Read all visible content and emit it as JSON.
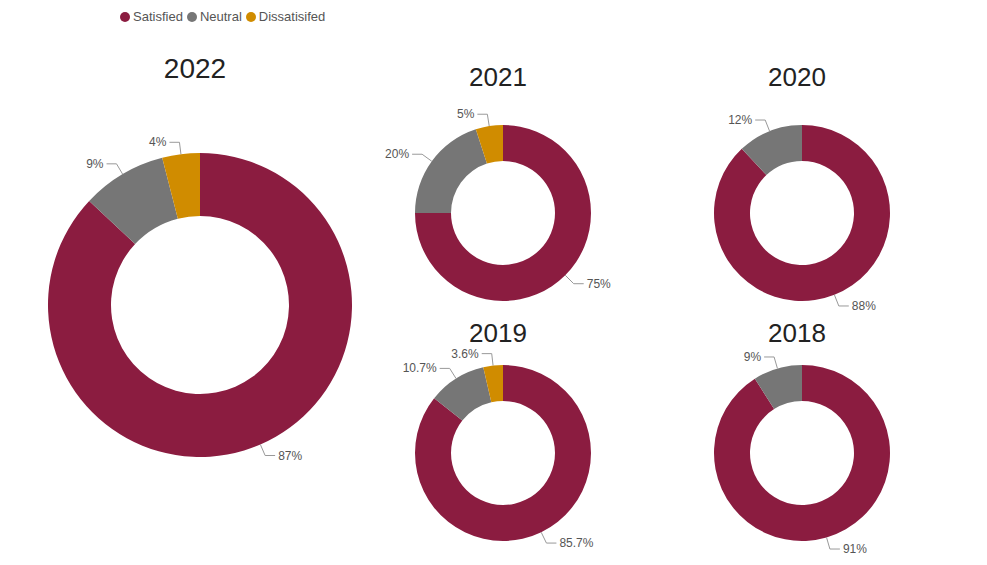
{
  "chart_data": [
    {
      "type": "pie",
      "title": "2022",
      "categories": [
        "Satisfied",
        "Neutral",
        "Dissatisifed"
      ],
      "values": [
        87,
        9,
        4
      ],
      "value_labels": [
        "87%",
        "9%",
        "4%"
      ],
      "colors": [
        "#8b1c40",
        "#767676",
        "#d08c00"
      ],
      "data_labels": true,
      "legend": "top-left"
    },
    {
      "type": "pie",
      "title": "2021",
      "categories": [
        "Satisfied",
        "Neutral",
        "Dissatisifed"
      ],
      "values": [
        75,
        20,
        5
      ],
      "value_labels": [
        "75%",
        "20%",
        "5%"
      ],
      "colors": [
        "#8b1c40",
        "#767676",
        "#d08c00"
      ],
      "data_labels": true
    },
    {
      "type": "pie",
      "title": "2020",
      "categories": [
        "Satisfied",
        "Neutral"
      ],
      "values": [
        88,
        12
      ],
      "value_labels": [
        "88%",
        "12%"
      ],
      "colors": [
        "#8b1c40",
        "#767676"
      ],
      "data_labels": true
    },
    {
      "type": "pie",
      "title": "2019",
      "categories": [
        "Satisfied",
        "Neutral",
        "Dissatisifed"
      ],
      "values": [
        85.7,
        10.7,
        3.6
      ],
      "value_labels": [
        "85.7%",
        "10.7%",
        "3.6%"
      ],
      "colors": [
        "#8b1c40",
        "#767676",
        "#d08c00"
      ],
      "data_labels": true
    },
    {
      "type": "pie",
      "title": "2018",
      "categories": [
        "Satisfied",
        "Neutral"
      ],
      "values": [
        91,
        9
      ],
      "value_labels": [
        "91%",
        "9%"
      ],
      "colors": [
        "#8b1c40",
        "#767676"
      ],
      "data_labels": true
    }
  ]
}
